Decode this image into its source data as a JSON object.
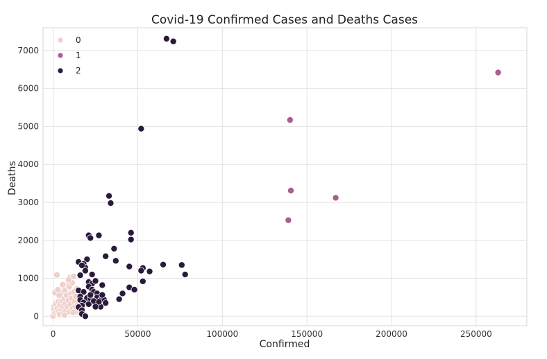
{
  "chart_data": {
    "type": "scatter",
    "title": "Covid-19 Confirmed Cases and Deaths Cases",
    "xlabel": "Confirmed",
    "ylabel": "Deaths",
    "xlim": [
      -6000,
      280000
    ],
    "ylim": [
      -250,
      7600
    ],
    "xticks": [
      0,
      50000,
      100000,
      150000,
      200000,
      250000
    ],
    "yticks": [
      0,
      1000,
      2000,
      3000,
      4000,
      5000,
      6000,
      7000
    ],
    "grid": true,
    "legend_position": "top-left",
    "colors": {
      "0": "#efd0cc",
      "1": "#a85f8e",
      "2": "#2b1a3c"
    },
    "series": [
      {
        "name": "0",
        "points": [
          [
            0,
            10
          ],
          [
            300,
            250
          ],
          [
            500,
            180
          ],
          [
            1000,
            90
          ],
          [
            1500,
            320
          ],
          [
            1800,
            140
          ],
          [
            2200,
            1090
          ],
          [
            1100,
            620
          ],
          [
            2500,
            200
          ],
          [
            3000,
            380
          ],
          [
            3200,
            120
          ],
          [
            3800,
            50
          ],
          [
            4000,
            300
          ],
          [
            4500,
            600
          ],
          [
            5000,
            180
          ],
          [
            5200,
            420
          ],
          [
            5800,
            260
          ],
          [
            6000,
            80
          ],
          [
            6500,
            480
          ],
          [
            7000,
            700
          ],
          [
            7200,
            320
          ],
          [
            7500,
            150
          ],
          [
            8000,
            550
          ],
          [
            8200,
            820
          ],
          [
            8500,
            250
          ],
          [
            9000,
            420
          ],
          [
            9500,
            780
          ],
          [
            9800,
            120
          ],
          [
            10000,
            1020
          ],
          [
            10200,
            300
          ],
          [
            10500,
            600
          ],
          [
            11000,
            470
          ],
          [
            11200,
            880
          ],
          [
            11500,
            200
          ],
          [
            12000,
            1050
          ],
          [
            12200,
            640
          ],
          [
            12500,
            380
          ],
          [
            13000,
            260
          ],
          [
            13300,
            520
          ],
          [
            13800,
            120
          ],
          [
            14000,
            720
          ],
          [
            14500,
            300
          ],
          [
            3500,
            550
          ],
          [
            6800,
            30
          ],
          [
            9200,
            960
          ],
          [
            5600,
            830
          ],
          [
            11800,
            100
          ],
          [
            2800,
            700
          ]
        ]
      },
      {
        "name": "1",
        "points": [
          [
            140000,
            5170
          ],
          [
            140500,
            3310
          ],
          [
            139000,
            2530
          ],
          [
            167000,
            3120
          ],
          [
            263000,
            6420
          ]
        ]
      },
      {
        "name": "2",
        "points": [
          [
            67000,
            7310
          ],
          [
            71000,
            7240
          ],
          [
            52000,
            4940
          ],
          [
            33000,
            3170
          ],
          [
            34000,
            2980
          ],
          [
            46000,
            2200
          ],
          [
            46000,
            2020
          ],
          [
            21000,
            2130
          ],
          [
            22000,
            2060
          ],
          [
            27000,
            2130
          ],
          [
            36000,
            1780
          ],
          [
            31000,
            1580
          ],
          [
            37000,
            1460
          ],
          [
            15000,
            1430
          ],
          [
            20000,
            1500
          ],
          [
            18000,
            1380
          ],
          [
            19000,
            1280
          ],
          [
            17000,
            1340
          ],
          [
            19000,
            1200
          ],
          [
            16000,
            1080
          ],
          [
            23000,
            1100
          ],
          [
            45000,
            1310
          ],
          [
            53000,
            1270
          ],
          [
            52000,
            1200
          ],
          [
            57000,
            1180
          ],
          [
            65000,
            1360
          ],
          [
            76000,
            1350
          ],
          [
            78000,
            1100
          ],
          [
            53000,
            920
          ],
          [
            45000,
            760
          ],
          [
            48000,
            700
          ],
          [
            41000,
            600
          ],
          [
            39000,
            450
          ],
          [
            21000,
            900
          ],
          [
            23000,
            860
          ],
          [
            25000,
            930
          ],
          [
            29000,
            820
          ],
          [
            21000,
            780
          ],
          [
            23000,
            700
          ],
          [
            15000,
            680
          ],
          [
            18000,
            640
          ],
          [
            24000,
            640
          ],
          [
            26000,
            600
          ],
          [
            16000,
            520
          ],
          [
            20000,
            480
          ],
          [
            22000,
            470
          ],
          [
            26000,
            500
          ],
          [
            28000,
            420
          ],
          [
            30000,
            440
          ],
          [
            16000,
            430
          ],
          [
            18000,
            360
          ],
          [
            21000,
            320
          ],
          [
            26000,
            300
          ],
          [
            28000,
            250
          ],
          [
            31000,
            350
          ],
          [
            17000,
            280
          ],
          [
            15000,
            240
          ],
          [
            17000,
            160
          ],
          [
            17000,
            60
          ],
          [
            19000,
            0
          ],
          [
            24000,
            400
          ],
          [
            27000,
            380
          ],
          [
            29000,
            560
          ],
          [
            22000,
            560
          ],
          [
            25000,
            250
          ]
        ]
      }
    ]
  }
}
